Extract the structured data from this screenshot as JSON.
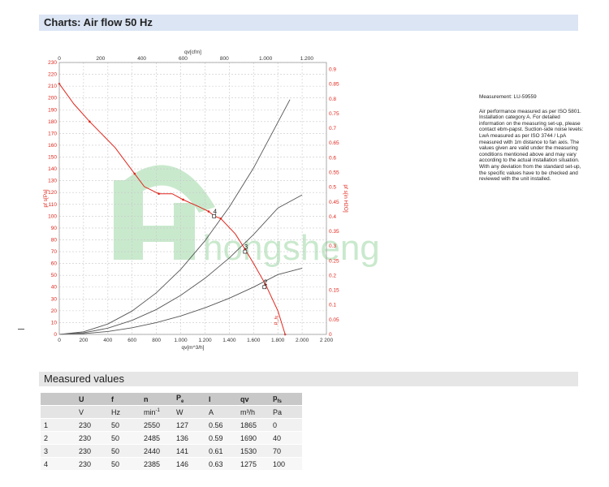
{
  "header": {
    "title": "Charts: Air flow 50 Hz"
  },
  "notes": {
    "measurement": "Measurement: LU-59559",
    "body": "Air performance measured as per ISO 5801. Installation category A. For detailed information on the measuring set-up, please contact ebm-papst. Suction-side noise levels: LwA measured as per ISO 3744 / LpA measured with 1m distance to fan axis. The values given are valid under the measuring conditions mentioned above and may vary according to the actual installation situation. With any deviation from the standard set-up, the specific values have to be checked and reviewed with the unit installed."
  },
  "chart_data": {
    "type": "line",
    "xlabel": "qv[m^3/h]",
    "x2label": "qv[cfm]",
    "ylabel": "pf s[Pa]",
    "y2label": "pf s[in H2O]",
    "xlim": [
      0,
      2200
    ],
    "ylim": [
      0,
      230
    ],
    "x2lim": [
      0,
      1294.8
    ],
    "y2lim": [
      0,
      0.9236
    ],
    "x_ticks": [
      "0",
      "200",
      "400",
      "600",
      "800",
      "1.000",
      "1.200",
      "1.400",
      "1.600",
      "1.800",
      "2.000",
      "2 200"
    ],
    "y_ticks": [
      "0",
      "10",
      "20",
      "30",
      "40",
      "50",
      "60",
      "70",
      "80",
      "90",
      "100",
      "110",
      "120",
      "130",
      "140",
      "150",
      "160",
      "170",
      "180",
      "190",
      "200",
      "210",
      "220",
      "230"
    ],
    "x2_ticks": [
      {
        "v": 0,
        "label": "0"
      },
      {
        "v": 200,
        "label": "200"
      },
      {
        "v": 400,
        "label": "400"
      },
      {
        "v": 600,
        "label": "600"
      },
      {
        "v": 800,
        "label": "800"
      },
      {
        "v": 1000,
        "label": "1.000"
      },
      {
        "v": 1200,
        "label": "1.200"
      }
    ],
    "y2_ticks": [
      {
        "v": 0,
        "label": "0"
      },
      {
        "v": 0.05,
        "label": "0.05"
      },
      {
        "v": 0.1,
        "label": "0.1"
      },
      {
        "v": 0.15,
        "label": "0.15"
      },
      {
        "v": 0.2,
        "label": "0.2"
      },
      {
        "v": 0.25,
        "label": "0.25"
      },
      {
        "v": 0.3,
        "label": "0.3"
      },
      {
        "v": 0.35,
        "label": "0.35"
      },
      {
        "v": 0.4,
        "label": "0.4"
      },
      {
        "v": 0.45,
        "label": "0.45"
      },
      {
        "v": 0.5,
        "label": "0.5"
      },
      {
        "v": 0.55,
        "label": "0.55"
      },
      {
        "v": 0.6,
        "label": "0.6"
      },
      {
        "v": 0.65,
        "label": "0.65"
      },
      {
        "v": 0.7,
        "label": "0.7"
      },
      {
        "v": 0.75,
        "label": "0.75"
      },
      {
        "v": 0.8,
        "label": "0.8"
      },
      {
        "v": 0.85,
        "label": "0.85"
      },
      {
        "v": 0.9,
        "label": "0.9"
      }
    ],
    "fan_curve": {
      "color": "#e0251b",
      "x": [
        0,
        120,
        250,
        460,
        620,
        700,
        820,
        930,
        1020,
        1150,
        1230,
        1280,
        1330,
        1450,
        1530,
        1600,
        1700,
        1800,
        1860
      ],
      "y": [
        212,
        195,
        180,
        158,
        136,
        125,
        119,
        119,
        114,
        108,
        104,
        100,
        98,
        85,
        72,
        60,
        42,
        20,
        0
      ]
    },
    "fan_curve_label": "p_fs",
    "system_curves": [
      {
        "color": "#555555",
        "x": [
          0,
          200,
          400,
          600,
          800,
          1000,
          1200,
          1400,
          1600,
          1900
        ],
        "y": [
          0,
          2.2,
          8.8,
          19.8,
          35.2,
          55,
          79.2,
          107.8,
          140.8,
          198.6
        ]
      },
      {
        "color": "#555555",
        "x": [
          0,
          200,
          400,
          600,
          800,
          1000,
          1200,
          1400,
          1600,
          1800,
          2000
        ],
        "y": [
          0,
          1.3,
          5.3,
          11.9,
          21.1,
          33,
          47.5,
          64.7,
          84.5,
          106.9,
          118
        ]
      },
      {
        "color": "#555555",
        "x": [
          0,
          200,
          400,
          600,
          800,
          1000,
          1200,
          1400,
          1600,
          1800,
          2000
        ],
        "y": [
          0,
          0.6,
          2.5,
          5.6,
          10,
          15.6,
          22.5,
          30.6,
          40,
          50.6,
          56
        ]
      }
    ],
    "operating_points": [
      {
        "label": "4",
        "x": 1275,
        "y": 100
      },
      {
        "label": "3",
        "x": 1530,
        "y": 70
      },
      {
        "label": "2",
        "x": 1690,
        "y": 40
      }
    ],
    "grid": true
  },
  "measured": {
    "title": "Measured values",
    "headers": [
      "",
      "U",
      "f",
      "n",
      "P",
      "I",
      "qv",
      "p"
    ],
    "header_subs": [
      "",
      "",
      "",
      "",
      "e",
      "",
      "",
      "fs"
    ],
    "units": [
      "",
      "V",
      "Hz",
      "min",
      "W",
      "A",
      "m³/h",
      "Pa"
    ],
    "unit_sups": [
      "",
      "",
      "",
      "-1",
      "",
      "",
      "",
      ""
    ],
    "rows": [
      [
        "1",
        "230",
        "50",
        "2550",
        "127",
        "0.56",
        "1865",
        "0"
      ],
      [
        "2",
        "230",
        "50",
        "2485",
        "136",
        "0.59",
        "1690",
        "40"
      ],
      [
        "3",
        "230",
        "50",
        "2440",
        "141",
        "0.61",
        "1530",
        "70"
      ],
      [
        "4",
        "230",
        "50",
        "2385",
        "146",
        "0.63",
        "1275",
        "100"
      ]
    ]
  },
  "watermark": {
    "text": "hongsheng",
    "color": "#3fb34f"
  }
}
